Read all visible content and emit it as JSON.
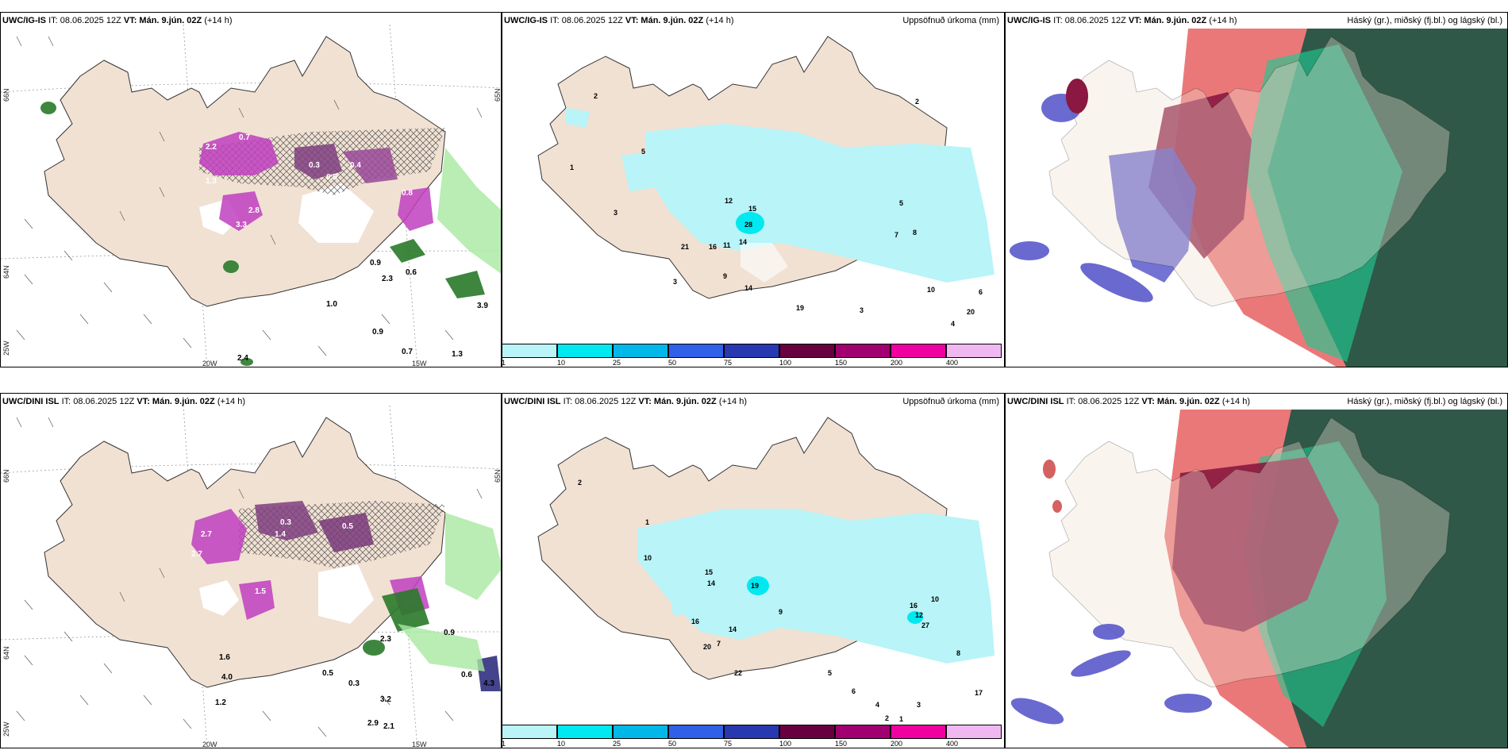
{
  "panels": {
    "p1": {
      "model": "UWC/IG-IS",
      "it": "IT: 08.06.2025 12Z",
      "vt": "VT: Mán. 9.jún. 02Z",
      "lead": "(+14 h)",
      "right": ""
    },
    "p2": {
      "model": "UWC/IG-IS",
      "it": "IT: 08.06.2025 12Z",
      "vt": "VT: Mán. 9.jún. 02Z",
      "lead": "(+14 h)",
      "right": "Uppsöfnuð úrkoma (mm)"
    },
    "p3": {
      "model": "UWC/IG-IS",
      "it": "IT: 08.06.2025 12Z",
      "vt": "VT: Mán. 9.jún. 02Z",
      "lead": "(+14 h)",
      "right": "Háský (gr.), miðský (fj.bl.) og lágský (bl.)"
    },
    "p4": {
      "model": "UWC/DINI ISL",
      "it": "IT: 08.06.2025 12Z",
      "vt": "VT: Mán. 9.jún. 02Z",
      "lead": "(+14 h)",
      "right": ""
    },
    "p5": {
      "model": "UWC/DINI ISL",
      "it": "IT: 08.06.2025 12Z",
      "vt": "VT: Mán. 9.jún. 02Z",
      "lead": "(+14 h)",
      "right": "Uppsöfnuð úrkoma (mm)"
    },
    "p6": {
      "model": "UWC/DINI ISL",
      "it": "IT: 08.06.2025 12Z",
      "vt": "VT: Mán. 9.jún. 02Z",
      "lead": "(+14 h)",
      "right": "Háský (gr.), miðský (fj.bl.) og lágský (bl.)"
    }
  },
  "axis_labels": {
    "lat66": "66N",
    "lat64": "64N",
    "lat65": "65N",
    "lon20": "20W",
    "lon15": "15W",
    "lon25": "25W"
  },
  "colorbar": {
    "levels": [
      "1",
      "10",
      "25",
      "50",
      "75",
      "100",
      "150",
      "200",
      "400"
    ],
    "colors": [
      "#b8f4f8",
      "#00e8f0",
      "#00b8e8",
      "#3060e8",
      "#2838b0",
      "#680040",
      "#a00070",
      "#f000a0",
      "#f0b8f0"
    ]
  },
  "precip_labels_top": [
    "2.2",
    "0.7",
    "0.3",
    "0.4",
    "0.5",
    "1.3",
    "2.8",
    "3.3",
    "0.8",
    "0.9",
    "2.3",
    "1.0",
    "0.9",
    "0.7",
    "1.3",
    "3.9",
    "0.6",
    "2.4"
  ],
  "precip_labels_bottom": [
    "2.7",
    "2.7",
    "1.5",
    "0.3",
    "1.4",
    "0.5",
    "0.6",
    "2.3",
    "0.9",
    "4.3",
    "1.6",
    "4.0",
    "1.2",
    "3.2",
    "2.9",
    "2.1",
    "0.5",
    "0.3"
  ],
  "accum_labels_top": [
    "2",
    "1",
    "3",
    "5",
    "12",
    "15",
    "28",
    "14",
    "11",
    "16",
    "21",
    "3",
    "9",
    "8",
    "7",
    "20",
    "14",
    "19",
    "10",
    "5",
    "6",
    "4",
    "3",
    "2"
  ],
  "accum_labels_bottom": [
    "2",
    "1",
    "10",
    "15",
    "14",
    "19",
    "16",
    "14",
    "22",
    "20",
    "7",
    "12",
    "16",
    "27",
    "10",
    "17",
    "9",
    "5",
    "6",
    "4",
    "3",
    "2",
    "1",
    "8"
  ]
}
